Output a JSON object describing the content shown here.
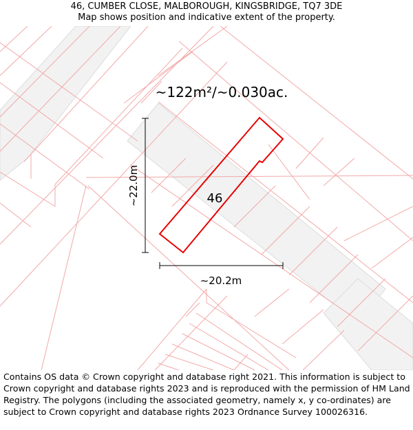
{
  "header": {
    "address": "46, CUMBER CLOSE, MALBOROUGH, KINGSBRIDGE, TQ7 3DE",
    "subtitle": "Map shows position and indicative extent of the property."
  },
  "map": {
    "area_label": "~122m²/~0.030ac.",
    "plot_number": "46",
    "height_label": "~22.0m",
    "width_label": "~20.2m",
    "colors": {
      "boundary": "#e60000",
      "parcel_lines": "#f2a8a8",
      "building_fill": "#f2f2f2",
      "building_edge": "#dcdcdc"
    }
  },
  "footer": {
    "copyright": "Contains OS data © Crown copyright and database right 2021. This information is subject to Crown copyright and database rights 2023 and is reproduced with the permission of HM Land Registry. The polygons (including the associated geometry, namely x, y co-ordinates) are subject to Crown copyright and database rights 2023 Ordnance Survey 100026316."
  }
}
